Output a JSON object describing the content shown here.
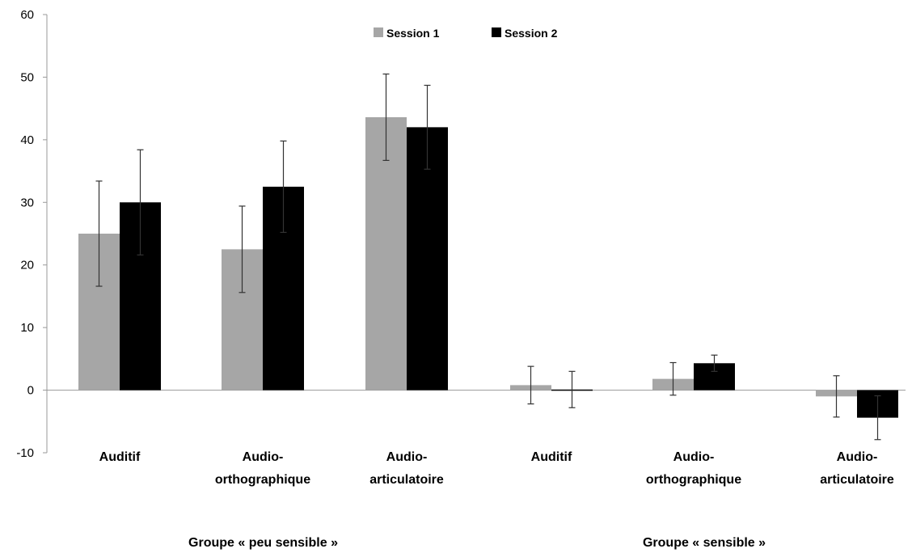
{
  "chart_data": {
    "type": "bar",
    "title": "",
    "xlabel": "",
    "ylabel": "",
    "ylim": [
      -10,
      60
    ],
    "yticks": [
      -10,
      0,
      10,
      20,
      30,
      40,
      50,
      60
    ],
    "grid": false,
    "legend_position": "top-center",
    "categories": [
      {
        "lines": [
          "Auditif"
        ]
      },
      {
        "lines": [
          "Audio-",
          "orthographique"
        ]
      },
      {
        "lines": [
          "Audio-",
          "articulatoire"
        ]
      },
      {
        "lines": [
          "Auditif"
        ]
      },
      {
        "lines": [
          "Audio-",
          "orthographique"
        ]
      },
      {
        "lines": [
          "Audio-",
          "articulatoire"
        ]
      }
    ],
    "groups": [
      {
        "label": "Groupe « peu sensible »",
        "categories": [
          0,
          1,
          2
        ]
      },
      {
        "label": "Groupe « sensible »",
        "categories": [
          3,
          4,
          5
        ]
      }
    ],
    "series": [
      {
        "name": "Session 1",
        "color": "#a6a6a6",
        "values": [
          25.0,
          22.5,
          43.6,
          0.8,
          1.8,
          -1.0
        ],
        "errors": [
          8.4,
          6.9,
          6.9,
          3.0,
          2.6,
          3.3
        ]
      },
      {
        "name": "Session 2",
        "color": "#000000",
        "values": [
          30.0,
          32.5,
          42.0,
          0.1,
          4.3,
          -4.4
        ],
        "errors": [
          8.4,
          7.3,
          6.7,
          2.9,
          1.3,
          3.5
        ]
      }
    ]
  }
}
